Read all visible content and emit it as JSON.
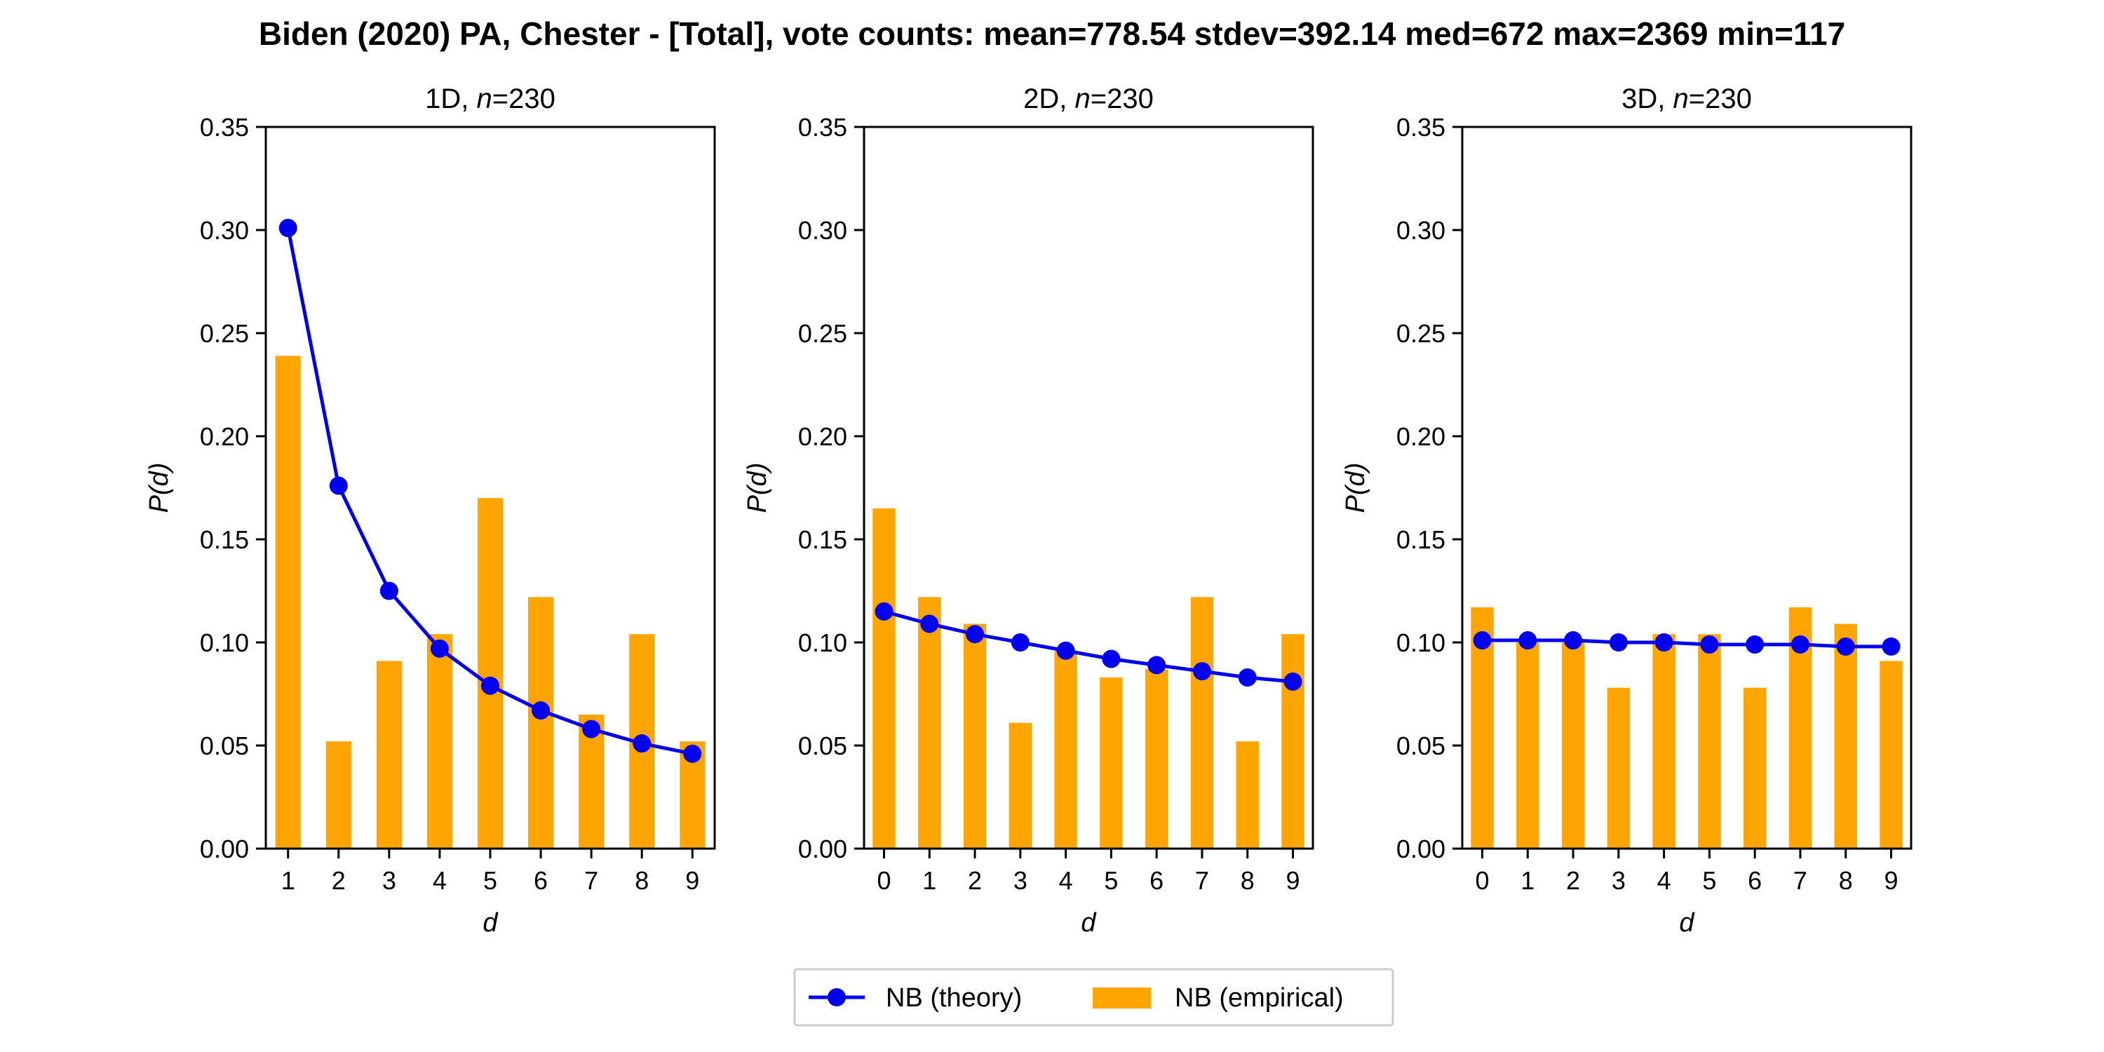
{
  "chart_data": {
    "title": "Biden (2020) PA, Chester - [Total], vote counts: mean=778.54 stdev=392.14 med=672 max=2369 min=117",
    "legend": {
      "placement": "bottom-center",
      "theory_label": "NB (theory)",
      "empirical_label": "NB (empirical)"
    },
    "colors": {
      "theory": "#0000ee",
      "empirical": "#ffa500"
    },
    "ylim": [
      0,
      0.35
    ],
    "yticks": [
      "0.00",
      "0.05",
      "0.10",
      "0.15",
      "0.20",
      "0.25",
      "0.30",
      "0.35"
    ],
    "ytick_values": [
      0,
      0.05,
      0.1,
      0.15,
      0.2,
      0.25,
      0.3,
      0.35
    ],
    "panels": [
      {
        "type": "bar",
        "title_prefix": "1D, ",
        "title_n": "n",
        "title_suffix": "=230",
        "xlabel": "d",
        "ylabel": "P(d)",
        "categories": [
          "1",
          "2",
          "3",
          "4",
          "5",
          "6",
          "7",
          "8",
          "9"
        ],
        "series": [
          {
            "name": "NB (empirical)",
            "kind": "bar",
            "values": [
              0.239,
              0.052,
              0.091,
              0.104,
              0.17,
              0.122,
              0.065,
              0.104,
              0.052
            ]
          },
          {
            "name": "NB (theory)",
            "kind": "line",
            "values": [
              0.301,
              0.176,
              0.125,
              0.097,
              0.079,
              0.067,
              0.058,
              0.051,
              0.046
            ]
          }
        ]
      },
      {
        "type": "bar",
        "title_prefix": "2D, ",
        "title_n": "n",
        "title_suffix": "=230",
        "xlabel": "d",
        "ylabel": "P(d)",
        "categories": [
          "0",
          "1",
          "2",
          "3",
          "4",
          "5",
          "6",
          "7",
          "8",
          "9"
        ],
        "series": [
          {
            "name": "NB (empirical)",
            "kind": "bar",
            "values": [
              0.165,
              0.122,
              0.109,
              0.061,
              0.096,
              0.083,
              0.087,
              0.122,
              0.052,
              0.104
            ]
          },
          {
            "name": "NB (theory)",
            "kind": "line",
            "values": [
              0.115,
              0.109,
              0.104,
              0.1,
              0.096,
              0.092,
              0.089,
              0.086,
              0.083,
              0.081
            ]
          }
        ]
      },
      {
        "type": "bar",
        "title_prefix": "3D, ",
        "title_n": "n",
        "title_suffix": "=230",
        "xlabel": "d",
        "ylabel": "P(d)",
        "categories": [
          "0",
          "1",
          "2",
          "3",
          "4",
          "5",
          "6",
          "7",
          "8",
          "9"
        ],
        "series": [
          {
            "name": "NB (empirical)",
            "kind": "bar",
            "values": [
              0.117,
              0.1,
              0.1,
              0.078,
              0.104,
              0.104,
              0.078,
              0.117,
              0.109,
              0.091
            ]
          },
          {
            "name": "NB (theory)",
            "kind": "line",
            "values": [
              0.101,
              0.101,
              0.101,
              0.1,
              0.1,
              0.099,
              0.099,
              0.099,
              0.098,
              0.098
            ]
          }
        ]
      }
    ]
  }
}
